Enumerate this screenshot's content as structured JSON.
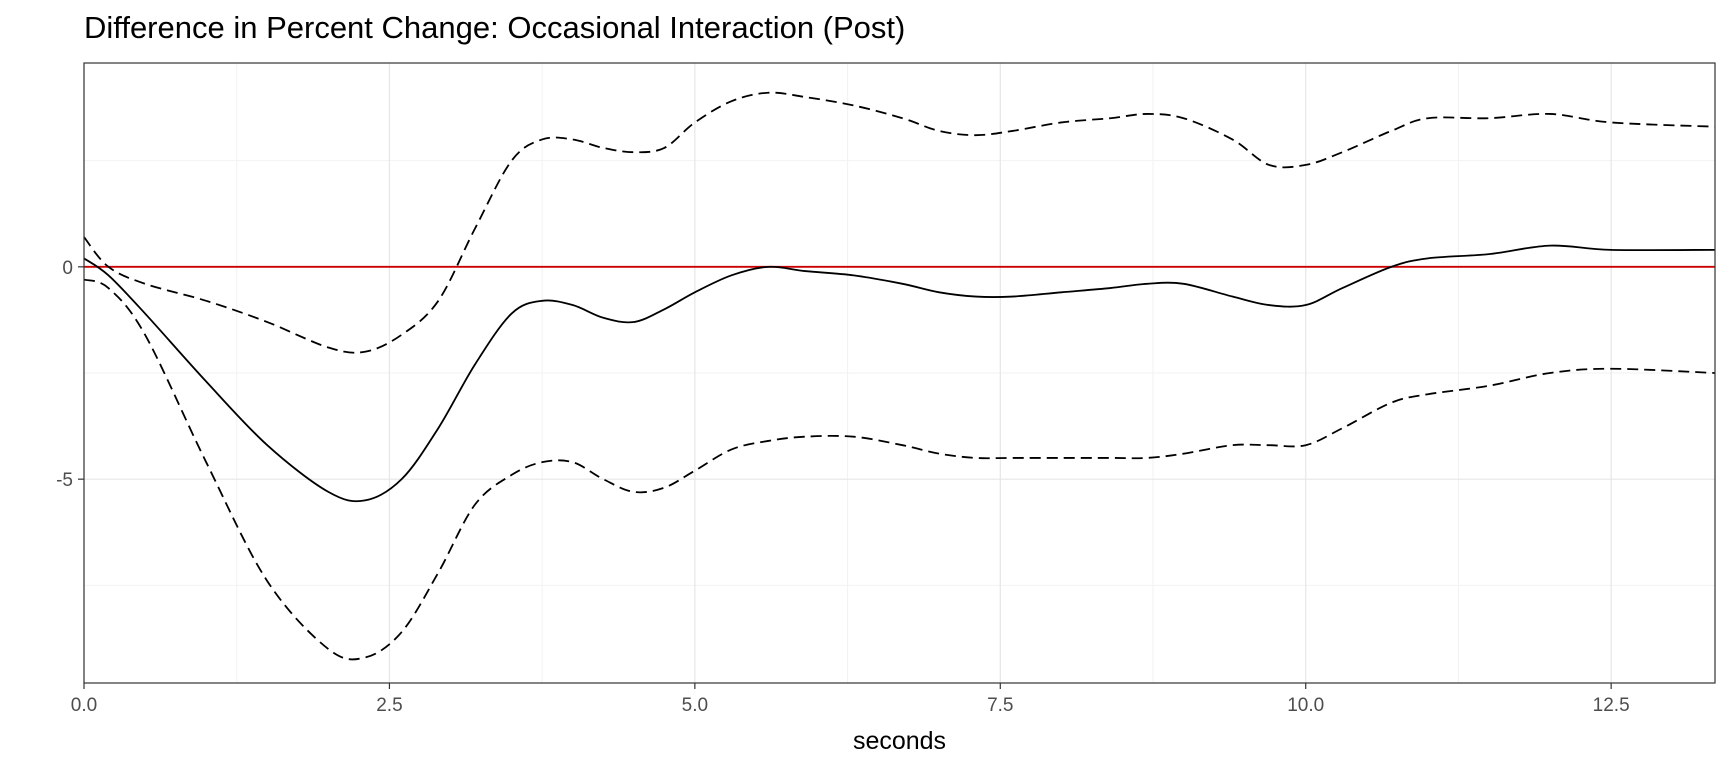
{
  "chart_data": {
    "type": "line",
    "title": "Difference in Percent Change: Occasional Interaction (Post)",
    "xlabel": "seconds",
    "ylabel": "",
    "xlim": [
      0,
      13.35
    ],
    "ylim": [
      -9.8,
      4.8
    ],
    "x_ticks": [
      0,
      2.5,
      5,
      7.5,
      10,
      12.5
    ],
    "x_tick_labels": [
      "0.0",
      "2.5",
      "5.0",
      "7.5",
      "10.0",
      "12.5"
    ],
    "y_ticks": [
      0,
      -5
    ],
    "y_tick_labels": [
      "0",
      "-5"
    ],
    "grid": true,
    "reference_line": {
      "y": 0,
      "color": "#cc0000"
    },
    "series": [
      {
        "style": "dashed",
        "color": "#000000",
        "x": [
          0,
          0.2,
          0.5,
          1.0,
          1.5,
          2.0,
          2.3,
          2.6,
          2.9,
          3.2,
          3.5,
          3.75,
          4.0,
          4.25,
          4.5,
          4.75,
          5.0,
          5.3,
          5.6,
          5.9,
          6.3,
          6.7,
          7.0,
          7.3,
          7.6,
          8.0,
          8.4,
          8.7,
          9.0,
          9.4,
          9.7,
          10.0,
          10.3,
          10.7,
          11.0,
          11.5,
          12.0,
          12.5,
          13.35
        ],
        "y": [
          0.7,
          0.0,
          -0.4,
          -0.8,
          -1.3,
          -1.9,
          -2.0,
          -1.6,
          -0.8,
          0.9,
          2.5,
          3.0,
          3.0,
          2.8,
          2.7,
          2.8,
          3.4,
          3.9,
          4.1,
          4.0,
          3.8,
          3.5,
          3.2,
          3.1,
          3.2,
          3.4,
          3.5,
          3.6,
          3.5,
          3.0,
          2.4,
          2.4,
          2.7,
          3.2,
          3.5,
          3.5,
          3.6,
          3.4,
          3.3
        ]
      },
      {
        "style": "solid",
        "color": "#000000",
        "x": [
          0,
          0.2,
          0.5,
          1.0,
          1.5,
          2.0,
          2.3,
          2.6,
          2.9,
          3.2,
          3.5,
          3.75,
          4.0,
          4.25,
          4.5,
          4.75,
          5.0,
          5.3,
          5.6,
          5.9,
          6.3,
          6.7,
          7.0,
          7.3,
          7.6,
          8.0,
          8.4,
          8.7,
          9.0,
          9.4,
          9.7,
          10.0,
          10.3,
          10.7,
          11.0,
          11.5,
          12.0,
          12.5,
          13.35
        ],
        "y": [
          0.2,
          -0.2,
          -1.1,
          -2.7,
          -4.2,
          -5.3,
          -5.5,
          -5.0,
          -3.8,
          -2.3,
          -1.1,
          -0.8,
          -0.9,
          -1.2,
          -1.3,
          -1.0,
          -0.6,
          -0.2,
          0.0,
          -0.1,
          -0.2,
          -0.4,
          -0.6,
          -0.7,
          -0.7,
          -0.6,
          -0.5,
          -0.4,
          -0.4,
          -0.7,
          -0.9,
          -0.9,
          -0.5,
          0.0,
          0.2,
          0.3,
          0.5,
          0.4,
          0.4
        ]
      },
      {
        "style": "dashed",
        "color": "#000000",
        "x": [
          0,
          0.2,
          0.5,
          1.0,
          1.5,
          2.0,
          2.3,
          2.6,
          2.9,
          3.2,
          3.5,
          3.75,
          4.0,
          4.25,
          4.5,
          4.75,
          5.0,
          5.3,
          5.6,
          5.9,
          6.3,
          6.7,
          7.0,
          7.3,
          7.6,
          8.0,
          8.4,
          8.7,
          9.0,
          9.4,
          9.7,
          10.0,
          10.3,
          10.7,
          11.0,
          11.5,
          12.0,
          12.5,
          13.35
        ],
        "y": [
          -0.3,
          -0.5,
          -1.6,
          -4.6,
          -7.4,
          -9.0,
          -9.2,
          -8.6,
          -7.2,
          -5.6,
          -4.9,
          -4.6,
          -4.6,
          -5.0,
          -5.3,
          -5.2,
          -4.8,
          -4.3,
          -4.1,
          -4.0,
          -4.0,
          -4.2,
          -4.4,
          -4.5,
          -4.5,
          -4.5,
          -4.5,
          -4.5,
          -4.4,
          -4.2,
          -4.2,
          -4.2,
          -3.8,
          -3.2,
          -3.0,
          -2.8,
          -2.5,
          -2.4,
          -2.5
        ]
      }
    ]
  }
}
